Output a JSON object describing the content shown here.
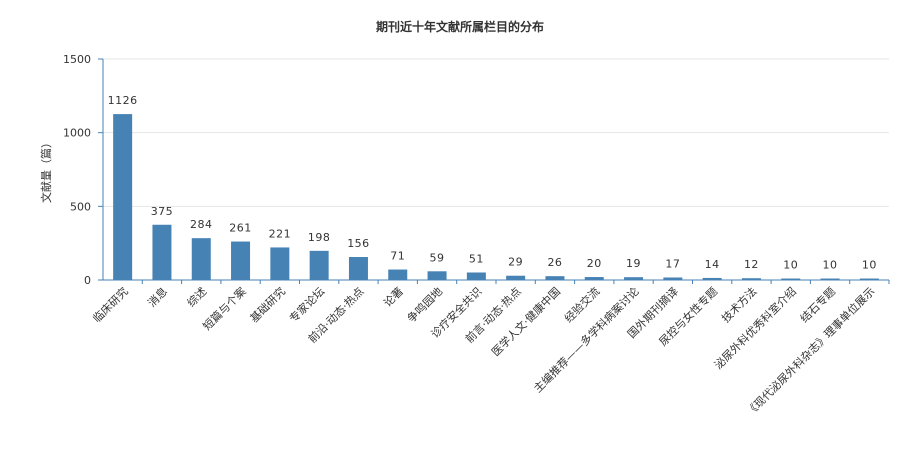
{
  "chart_data": {
    "type": "bar",
    "title": "期刊近十年文献所属栏目的分布",
    "ylabel": "文献量（篇）",
    "xlabel": "",
    "ylim": [
      0,
      1500
    ],
    "yticks": [
      0,
      500,
      1000,
      1500
    ],
    "grid": true,
    "legend": "none",
    "bar_color": "#4682b4",
    "categories": [
      "临床研究",
      "消息",
      "综述",
      "短篇与个案",
      "基础研究",
      "专家论坛",
      "前沿·动态·热点",
      "论著",
      "争鸣园地",
      "诊疗安全共识",
      "前言·动态·热点",
      "医学人文·健康中国",
      "经验交流",
      "主编推荐——多学科病案讨论",
      "国外期刊摘译",
      "尿控与女性专题",
      "技术方法",
      "泌尿外科优秀科室介绍",
      "结石专题",
      "《现代泌尿外科杂志》理事单位展示"
    ],
    "values": [
      1126,
      375,
      284,
      261,
      221,
      198,
      156,
      71,
      59,
      51,
      29,
      26,
      20,
      19,
      17,
      14,
      12,
      10,
      10,
      10
    ]
  }
}
